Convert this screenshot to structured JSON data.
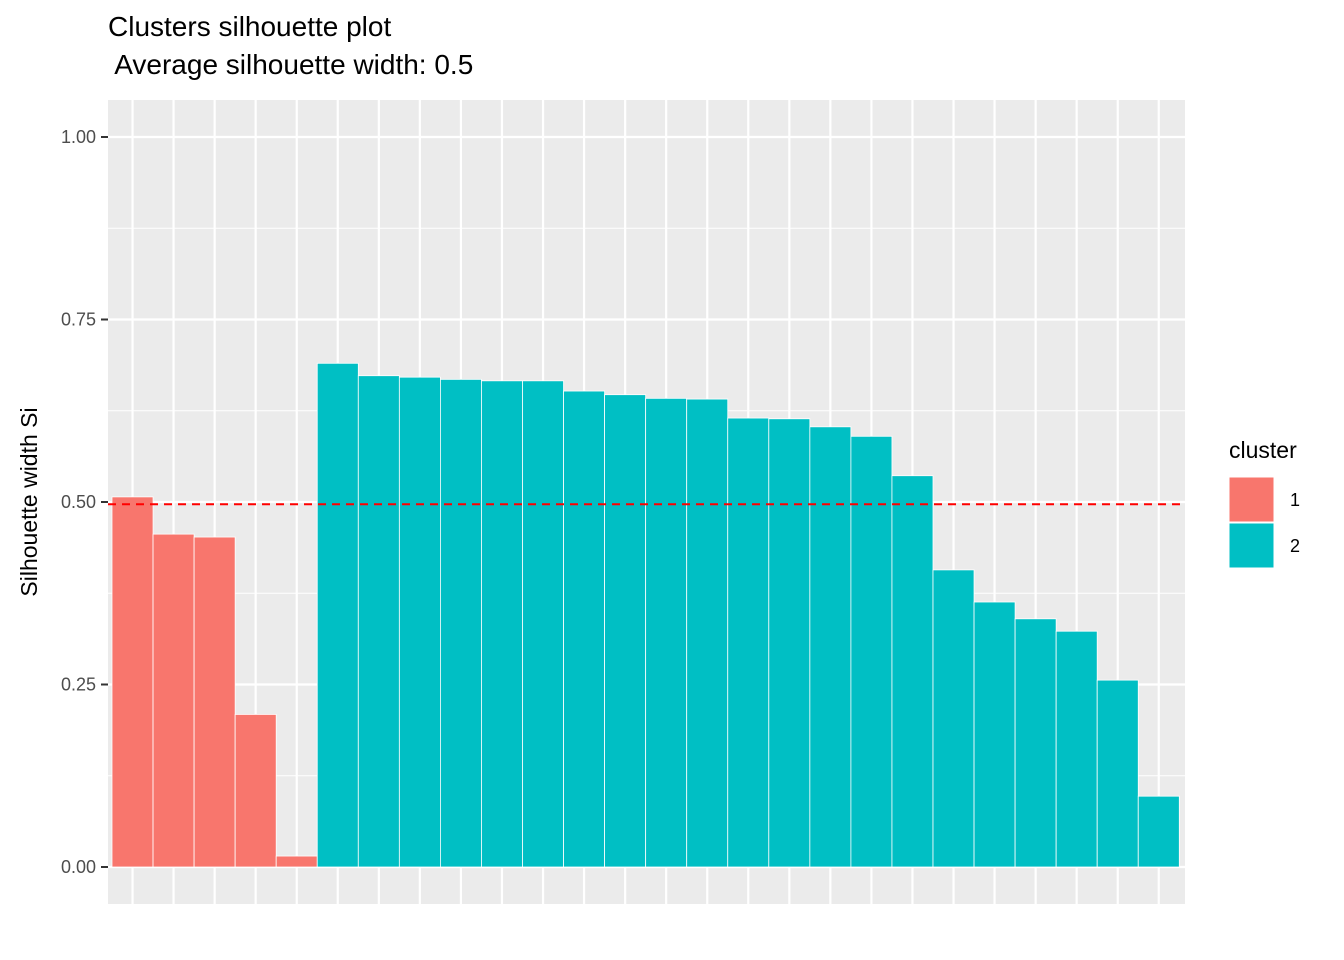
{
  "chart_data": {
    "type": "bar",
    "title": "Clusters silhouette plot",
    "subtitle": " Average silhouette width: 0.5",
    "xlabel": "",
    "ylabel": "Silhouette width Si",
    "ylim": [
      0,
      1.05
    ],
    "yticks": [
      "0.00",
      "0.25",
      "0.50",
      "0.75",
      "1.00"
    ],
    "ytick_values": [
      0,
      0.25,
      0.5,
      0.75,
      1.0
    ],
    "average_line": 0.497,
    "legend": {
      "title": "cluster",
      "position": "right",
      "entries": [
        {
          "label": "1",
          "color": "#F8766D"
        },
        {
          "label": "2",
          "color": "#00BFC4"
        }
      ]
    },
    "colors": {
      "1": "#F8766D",
      "2": "#00BFC4",
      "average_line": "#FF0000",
      "panel": "#EBEBEB"
    },
    "bars": [
      {
        "cluster": "1",
        "value": 0.507
      },
      {
        "cluster": "1",
        "value": 0.456
      },
      {
        "cluster": "1",
        "value": 0.452
      },
      {
        "cluster": "1",
        "value": 0.209
      },
      {
        "cluster": "1",
        "value": 0.015
      },
      {
        "cluster": "2",
        "value": 0.69
      },
      {
        "cluster": "2",
        "value": 0.673
      },
      {
        "cluster": "2",
        "value": 0.671
      },
      {
        "cluster": "2",
        "value": 0.668
      },
      {
        "cluster": "2",
        "value": 0.666
      },
      {
        "cluster": "2",
        "value": 0.666
      },
      {
        "cluster": "2",
        "value": 0.652
      },
      {
        "cluster": "2",
        "value": 0.647
      },
      {
        "cluster": "2",
        "value": 0.642
      },
      {
        "cluster": "2",
        "value": 0.641
      },
      {
        "cluster": "2",
        "value": 0.615
      },
      {
        "cluster": "2",
        "value": 0.614
      },
      {
        "cluster": "2",
        "value": 0.603
      },
      {
        "cluster": "2",
        "value": 0.59
      },
      {
        "cluster": "2",
        "value": 0.536
      },
      {
        "cluster": "2",
        "value": 0.407
      },
      {
        "cluster": "2",
        "value": 0.363
      },
      {
        "cluster": "2",
        "value": 0.34
      },
      {
        "cluster": "2",
        "value": 0.323
      },
      {
        "cluster": "2",
        "value": 0.256
      },
      {
        "cluster": "2",
        "value": 0.097
      }
    ]
  }
}
